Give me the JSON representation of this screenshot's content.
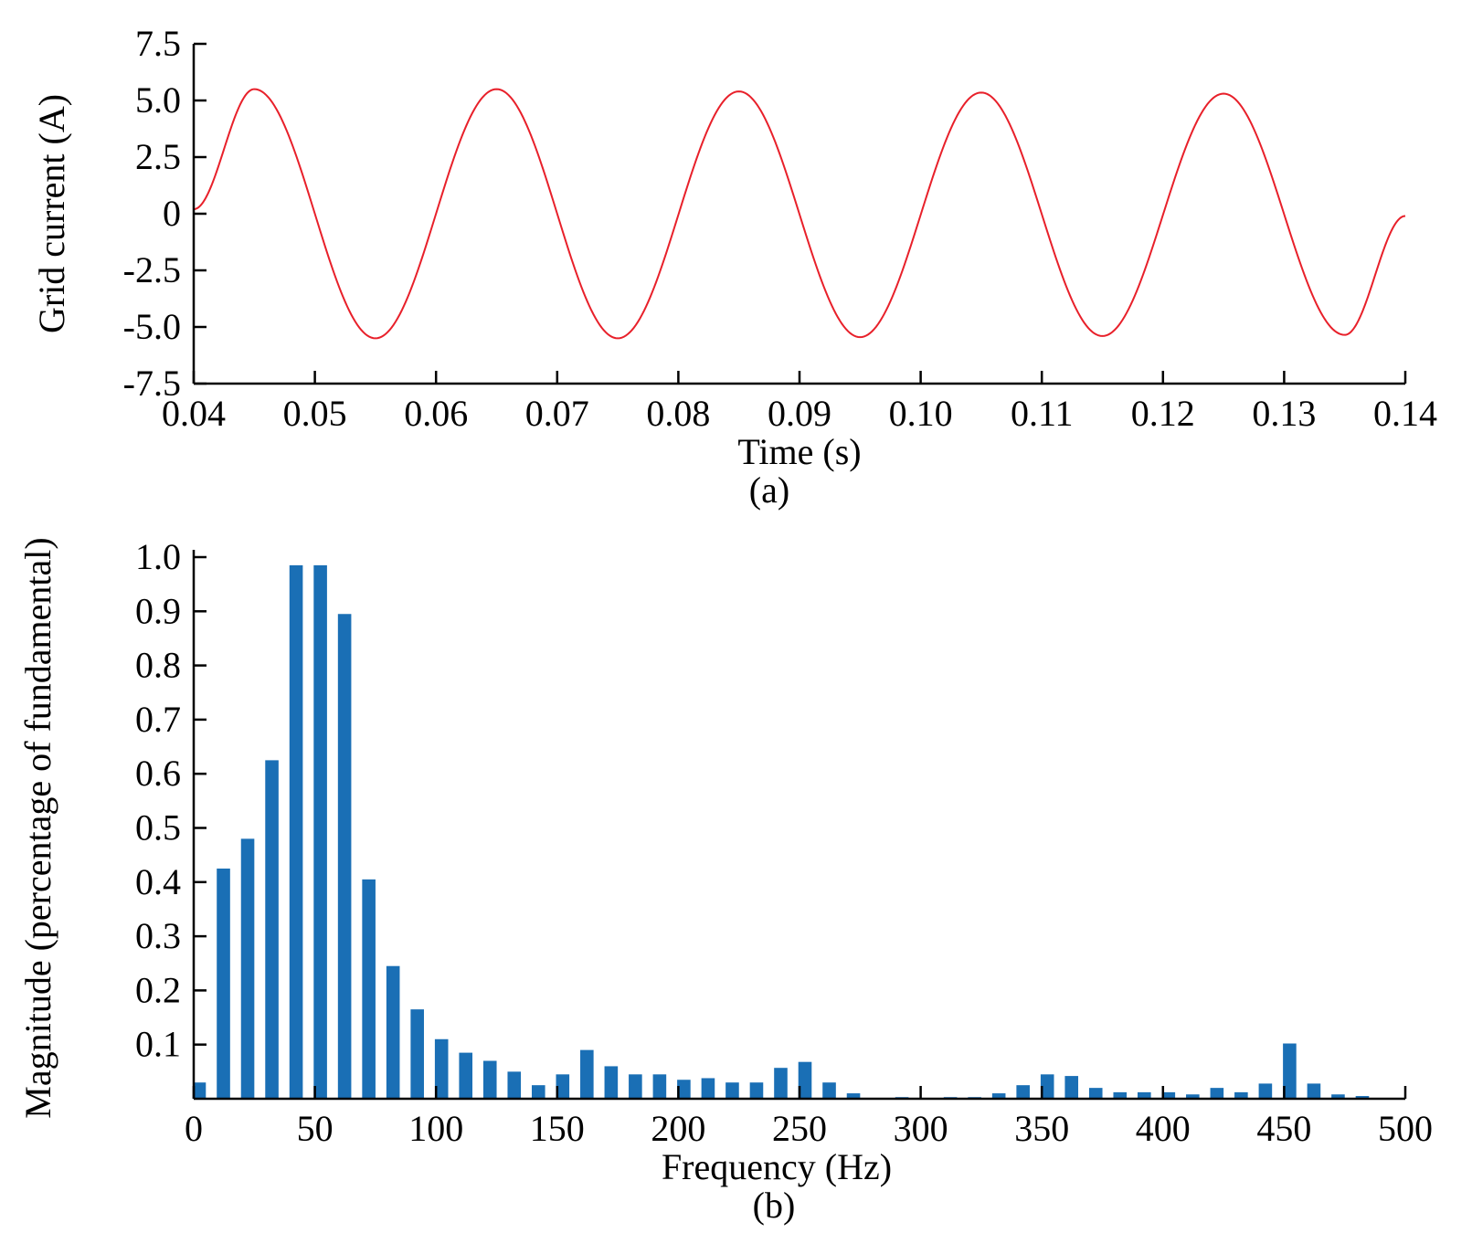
{
  "chart_data": [
    {
      "type": "line",
      "panel_label": "(a)",
      "xlabel": "Time (s)",
      "ylabel": "Grid current (A)",
      "xlim": [
        0.04,
        0.14
      ],
      "ylim": [
        -7.5,
        7.5
      ],
      "x_ticks": [
        0.04,
        0.05,
        0.06,
        0.07,
        0.08,
        0.09,
        0.1,
        0.11,
        0.12,
        0.13,
        0.14
      ],
      "x_tick_labels": [
        "0.04",
        "0.05",
        "0.06",
        "0.07",
        "0.08",
        "0.09",
        "0.10",
        "0.11",
        "0.12",
        "0.13",
        "0.14"
      ],
      "y_ticks": [
        7.5,
        5.0,
        2.5,
        0,
        -2.5,
        -5.0,
        -7.5
      ],
      "y_tick_labels": [
        "7.5",
        "5.0",
        "2.5",
        "0",
        "-2.5",
        "-5.0",
        "-7.5"
      ],
      "grid": false,
      "color": "#e8202a",
      "series": [
        {
          "x": [
            0.04,
            0.045,
            0.055,
            0.065,
            0.075,
            0.085,
            0.095,
            0.105,
            0.115,
            0.125,
            0.135,
            0.14
          ],
          "y": [
            0.2,
            5.5,
            -5.5,
            5.5,
            -5.5,
            5.4,
            -5.45,
            5.35,
            -5.4,
            5.3,
            -5.35,
            -0.1
          ]
        }
      ]
    },
    {
      "type": "bar",
      "panel_label": "(b)",
      "xlabel": "Frequency (Hz)",
      "ylabel": "Magnitude (percentage of  fundamental)",
      "xlim": [
        0,
        500
      ],
      "ylim": [
        0,
        1.0
      ],
      "x_ticks": [
        0,
        50,
        100,
        150,
        200,
        250,
        300,
        350,
        400,
        450,
        500
      ],
      "x_tick_labels": [
        "0",
        "50",
        "100",
        "150",
        "200",
        "250",
        "300",
        "350",
        "400",
        "450",
        "500"
      ],
      "y_ticks": [
        0.1,
        0.2,
        0.3,
        0.4,
        0.5,
        0.6,
        0.7,
        0.8,
        0.9,
        1.0
      ],
      "y_tick_labels": [
        "0.1",
        "0.2",
        "0.3",
        "0.4",
        "0.5",
        "0.6",
        "0.7",
        "0.8",
        "0.9",
        "1.0"
      ],
      "grid": false,
      "color": "#1a6fb5",
      "x": [
        0,
        10,
        20,
        30,
        40,
        50,
        60,
        70,
        80,
        90,
        100,
        110,
        120,
        130,
        140,
        150,
        160,
        170,
        180,
        190,
        200,
        210,
        220,
        230,
        240,
        250,
        260,
        270,
        280,
        290,
        300,
        310,
        320,
        330,
        340,
        350,
        360,
        370,
        380,
        390,
        400,
        410,
        420,
        430,
        440,
        450,
        460,
        470,
        480
      ],
      "values": [
        0.03,
        0.425,
        0.48,
        0.625,
        0.985,
        0.985,
        0.895,
        0.405,
        0.245,
        0.165,
        0.11,
        0.085,
        0.07,
        0.05,
        0.025,
        0.045,
        0.09,
        0.06,
        0.045,
        0.045,
        0.035,
        0.038,
        0.03,
        0.03,
        0.057,
        0.068,
        0.03,
        0.01,
        0.0,
        0.003,
        0.0,
        0.003,
        0.003,
        0.01,
        0.025,
        0.045,
        0.042,
        0.02,
        0.012,
        0.012,
        0.012,
        0.008,
        0.02,
        0.012,
        0.028,
        0.102,
        0.028,
        0.008,
        0.005
      ]
    }
  ]
}
